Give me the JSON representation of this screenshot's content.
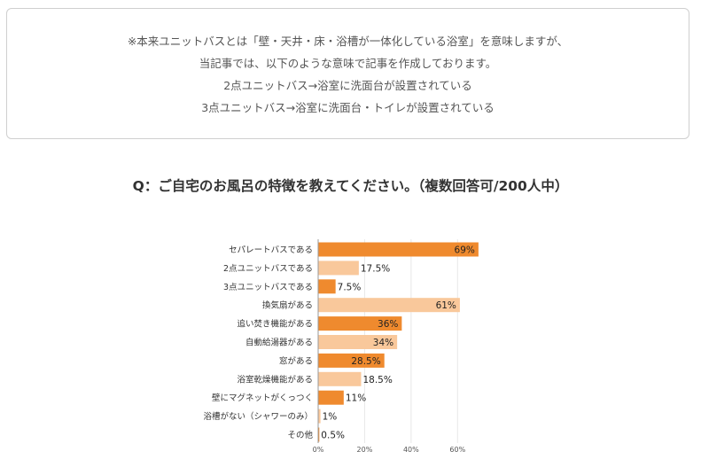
{
  "notice": {
    "lines": [
      "※本来ユニットバスとは「壁・天井・床・浴槽が一体化している浴室」を意味しますが、",
      "当記事では、以下のような意味で記事を作成しております。",
      "2点ユニットバス→浴室に洗面台が設置されている",
      "3点ユニットバス→浴室に洗面台・トイレが設置されている"
    ]
  },
  "question": "Q：ご自宅のお風呂の特徴を教えてください。（複数回答可/200人中）",
  "colors": {
    "dark": "#ef8a2e",
    "light": "#f9c89b",
    "axis": "#999999",
    "grid": "#e8e8e8"
  },
  "chart_data": {
    "type": "bar",
    "orientation": "horizontal",
    "title": "Q：ご自宅のお風呂の特徴を教えてください。（複数回答可/200人中）",
    "categories": [
      "セパレートバスである",
      "2点ユニットバスである",
      "3点ユニットバスである",
      "換気扇がある",
      "追い焚き機能がある",
      "自動給湯器がある",
      "窓がある",
      "浴室乾燥機能がある",
      "壁にマグネットがくっつく",
      "浴槽がない（シャワーのみ）",
      "その他"
    ],
    "values": [
      69,
      17.5,
      7.5,
      61,
      36,
      34,
      28.5,
      18.5,
      11,
      1,
      0.5
    ],
    "value_labels": [
      "69%",
      "17.5%",
      "7.5%",
      "61%",
      "36%",
      "34%",
      "28.5%",
      "18.5%",
      "11%",
      "1%",
      "0.5%"
    ],
    "bar_shades": [
      "dark",
      "light",
      "dark",
      "light",
      "dark",
      "light",
      "dark",
      "light",
      "dark",
      "light",
      "dark"
    ],
    "xlim": [
      0,
      70
    ],
    "xticks": [
      0,
      20,
      40,
      60
    ],
    "xtick_labels": [
      "0%",
      "20%",
      "40%",
      "60%"
    ],
    "grid": true
  }
}
